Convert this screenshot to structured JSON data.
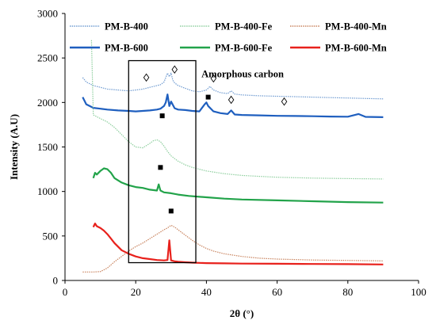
{
  "chart_data": {
    "type": "line",
    "title": "",
    "xlabel": "2θ (°)",
    "ylabel": "Intensity (A.U)",
    "xlim": [
      0,
      100
    ],
    "ylim": [
      0,
      3000
    ],
    "xticks": [
      "0",
      "20",
      "40",
      "60",
      "80",
      "100"
    ],
    "yticks": [
      "0",
      "500",
      "1000",
      "1500",
      "2000",
      "2500",
      "3000"
    ],
    "grid": false,
    "legend_position": "top",
    "colors": {
      "pm_b_400": "#6f9bd1",
      "pm_b_400_fe": "#8fcf9f",
      "pm_b_400_mn": "#c9845f",
      "pm_b_600": "#1f5fbf",
      "pm_b_600_fe": "#22a34a",
      "pm_b_600_mn": "#e8211c"
    },
    "series": [
      {
        "key": "pm_b_400",
        "name": "PM-B-400",
        "style": "dotted",
        "x": [
          5,
          6,
          8,
          10,
          12,
          15,
          18,
          20,
          22,
          24,
          26,
          27,
          28,
          28.5,
          29,
          29.5,
          30,
          30.5,
          31,
          32,
          34,
          36,
          38,
          40,
          41,
          42,
          44,
          46,
          47,
          48,
          50,
          55,
          60,
          65,
          70,
          75,
          80,
          85,
          90
        ],
        "y": [
          2280,
          2230,
          2190,
          2170,
          2150,
          2140,
          2130,
          2140,
          2150,
          2170,
          2190,
          2200,
          2230,
          2280,
          2330,
          2290,
          2330,
          2250,
          2220,
          2190,
          2160,
          2130,
          2120,
          2140,
          2180,
          2140,
          2110,
          2100,
          2130,
          2095,
          2085,
          2075,
          2070,
          2065,
          2060,
          2055,
          2050,
          2045,
          2040
        ]
      },
      {
        "key": "pm_b_600",
        "name": "PM-B-600",
        "style": "solid",
        "x": [
          5,
          6,
          8,
          10,
          12,
          15,
          18,
          20,
          22,
          24,
          26,
          27,
          28,
          28.5,
          29,
          29.5,
          30,
          31,
          32,
          34,
          36,
          38,
          39.5,
          40,
          40.5,
          42,
          44,
          46,
          47,
          48,
          50,
          55,
          60,
          65,
          70,
          75,
          80,
          83,
          85,
          90
        ],
        "y": [
          2060,
          1980,
          1940,
          1930,
          1920,
          1910,
          1905,
          1900,
          1905,
          1910,
          1920,
          1930,
          1960,
          2000,
          2090,
          1960,
          2010,
          1935,
          1920,
          1915,
          1905,
          1900,
          1980,
          2000,
          1960,
          1900,
          1880,
          1870,
          1910,
          1865,
          1860,
          1855,
          1850,
          1848,
          1845,
          1842,
          1840,
          1870,
          1838,
          1835
        ]
      },
      {
        "key": "pm_b_400_fe",
        "name": "PM-B-400-Fe",
        "style": "dotted",
        "x": [
          7.5,
          8,
          9,
          10,
          12,
          14,
          16,
          18,
          20,
          22,
          24,
          25,
          26,
          27,
          28,
          29,
          30,
          32,
          34,
          36,
          38,
          40,
          45,
          50,
          55,
          60,
          70,
          80,
          90
        ],
        "y": [
          2700,
          1860,
          1840,
          1820,
          1780,
          1720,
          1640,
          1560,
          1500,
          1490,
          1540,
          1570,
          1580,
          1560,
          1510,
          1450,
          1400,
          1340,
          1300,
          1270,
          1250,
          1230,
          1200,
          1180,
          1170,
          1160,
          1150,
          1145,
          1140
        ]
      },
      {
        "key": "pm_b_600_fe",
        "name": "PM-B-600-Fe",
        "style": "solid",
        "x": [
          8,
          8.5,
          9,
          10,
          11,
          12,
          13,
          14,
          16,
          18,
          20,
          22,
          24,
          26,
          26.5,
          27,
          28,
          30,
          32,
          35,
          40,
          45,
          50,
          60,
          70,
          80,
          90
        ],
        "y": [
          1150,
          1210,
          1190,
          1230,
          1260,
          1250,
          1210,
          1150,
          1100,
          1070,
          1050,
          1040,
          1020,
          1010,
          1080,
          1010,
          990,
          980,
          965,
          950,
          935,
          920,
          910,
          900,
          890,
          880,
          875
        ]
      },
      {
        "key": "pm_b_400_mn",
        "name": "PM-B-400-Mn",
        "style": "dotted",
        "x": [
          5,
          8,
          10,
          12,
          14,
          15,
          16,
          18,
          20,
          22,
          24,
          26,
          28,
          29,
          30,
          31,
          32,
          34,
          36,
          38,
          40,
          42,
          45,
          50,
          55,
          60,
          70,
          80,
          90
        ],
        "y": [
          95,
          95,
          100,
          140,
          210,
          240,
          270,
          330,
          380,
          420,
          470,
          520,
          570,
          590,
          620,
          600,
          570,
          510,
          450,
          400,
          360,
          330,
          300,
          270,
          250,
          240,
          230,
          225,
          220
        ]
      },
      {
        "key": "pm_b_600_mn",
        "name": "PM-B-600-Mn",
        "style": "solid",
        "x": [
          8,
          8.5,
          9,
          10,
          11,
          12,
          13,
          14,
          15,
          16,
          18,
          20,
          22,
          24,
          26,
          28,
          29,
          29.5,
          30,
          31,
          32,
          34,
          36,
          40,
          45,
          50,
          60,
          70,
          80,
          90
        ],
        "y": [
          600,
          640,
          610,
          590,
          560,
          520,
          470,
          420,
          380,
          340,
          300,
          270,
          250,
          240,
          230,
          225,
          230,
          450,
          225,
          215,
          210,
          205,
          200,
          195,
          192,
          190,
          188,
          185,
          183,
          180
        ]
      }
    ],
    "annotations": [
      {
        "text": "Amorphous carbon",
        "x": 39.5,
        "y": 2320
      }
    ],
    "markers": {
      "diamond": [
        {
          "x": 23,
          "y": 2280
        },
        {
          "x": 31,
          "y": 2370
        },
        {
          "x": 42,
          "y": 2270
        },
        {
          "x": 47,
          "y": 2030
        },
        {
          "x": 62,
          "y": 2010
        }
      ],
      "square": [
        {
          "x": 27.5,
          "y": 1850
        },
        {
          "x": 40.5,
          "y": 2060
        },
        {
          "x": 27,
          "y": 1270
        },
        {
          "x": 30,
          "y": 780
        }
      ]
    },
    "highlight_box": {
      "x0": 18,
      "x1": 37,
      "y0": 200,
      "y1": 2470
    }
  }
}
